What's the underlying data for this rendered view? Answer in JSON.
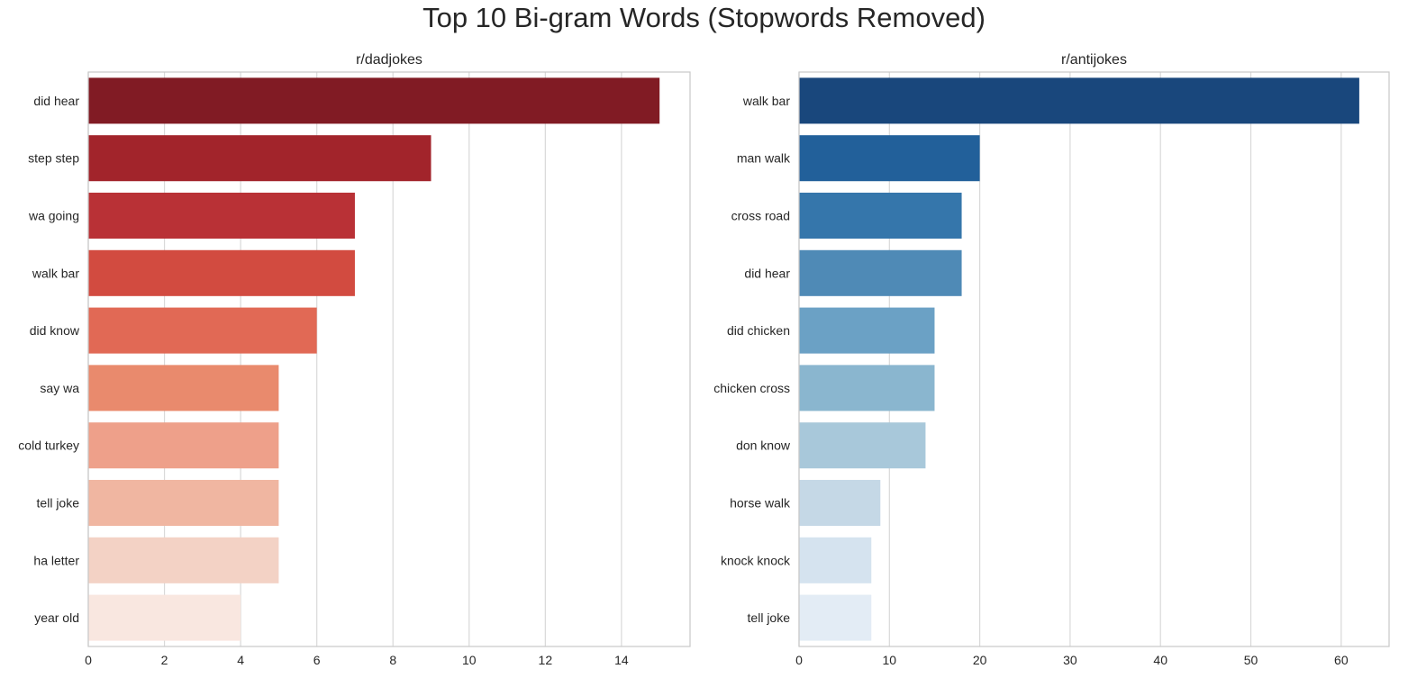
{
  "title": "Top 10 Bi-gram Words (Stopwords Removed)",
  "chart_data": [
    {
      "type": "bar",
      "orientation": "horizontal",
      "title": "r/dadjokes",
      "xlabel": "",
      "ylabel": "",
      "categories": [
        "did hear",
        "step step",
        "wa going",
        "walk bar",
        "did know",
        "say wa",
        "cold turkey",
        "tell joke",
        "ha letter",
        "year old"
      ],
      "values": [
        15,
        9,
        7,
        7,
        6,
        5,
        5,
        5,
        5,
        4
      ],
      "xlim": [
        0,
        15.8
      ],
      "xticks": [
        0,
        2,
        4,
        6,
        8,
        10,
        12,
        14
      ],
      "grid": "vertical",
      "colors": [
        "#811b24",
        "#a2242b",
        "#b93136",
        "#d24b40",
        "#e16955",
        "#e98a6d",
        "#eea08a",
        "#f0b6a1",
        "#f3d2c5",
        "#f9e7e0"
      ]
    },
    {
      "type": "bar",
      "orientation": "horizontal",
      "title": "r/antijokes",
      "xlabel": "",
      "ylabel": "",
      "categories": [
        "walk bar",
        "man walk",
        "cross road",
        "did hear",
        "did chicken",
        "chicken cross",
        "don know",
        "horse walk",
        "knock knock",
        "tell joke"
      ],
      "values": [
        62,
        20,
        18,
        18,
        15,
        15,
        14,
        9,
        8,
        8
      ],
      "xlim": [
        0,
        65.3
      ],
      "xticks": [
        0,
        10,
        20,
        30,
        40,
        50,
        60
      ],
      "grid": "vertical",
      "colors": [
        "#19477c",
        "#22609a",
        "#3576ab",
        "#4f8ab6",
        "#6ba1c5",
        "#8ab6cf",
        "#a8c8da",
        "#c5d8e6",
        "#d5e3ef",
        "#e3ecf5"
      ]
    }
  ]
}
